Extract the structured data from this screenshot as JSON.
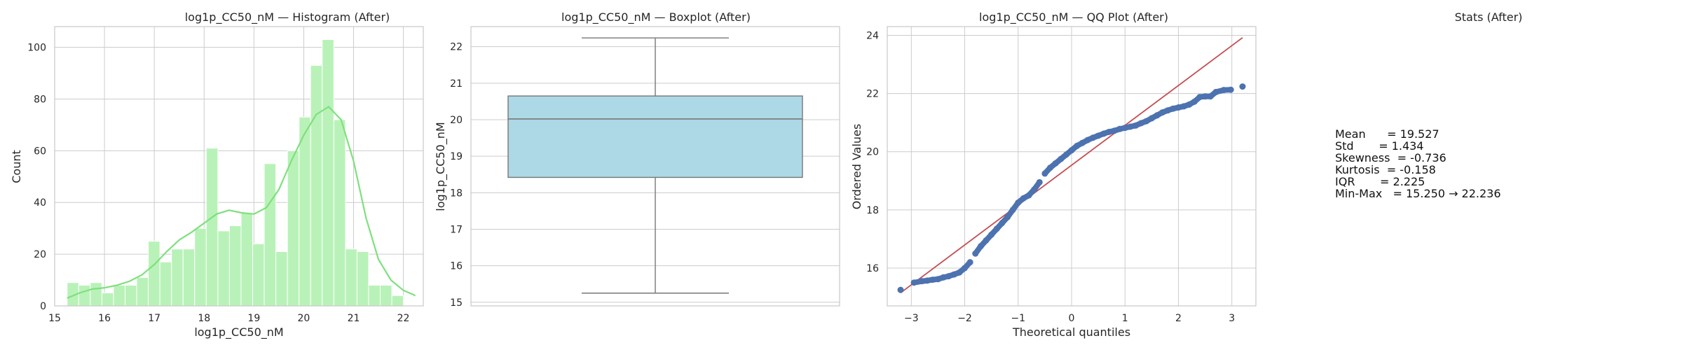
{
  "chart_data": [
    {
      "type": "histogram",
      "title": "log1p_CC50_nM — Histogram (After)",
      "xlabel": "log1p_CC50_nM",
      "ylabel": "Count",
      "xlim": [
        15.0,
        22.4
      ],
      "ylim": [
        0,
        108
      ],
      "xticks": [
        15,
        16,
        17,
        18,
        19,
        20,
        21,
        22
      ],
      "yticks": [
        0,
        20,
        40,
        60,
        80,
        100
      ],
      "bins": [
        {
          "x0": 15.25,
          "x1": 15.482,
          "count": 9
        },
        {
          "x0": 15.482,
          "x1": 15.715,
          "count": 8
        },
        {
          "x0": 15.715,
          "x1": 15.948,
          "count": 9
        },
        {
          "x0": 15.948,
          "x1": 16.181,
          "count": 5
        },
        {
          "x0": 16.181,
          "x1": 16.414,
          "count": 8
        },
        {
          "x0": 16.414,
          "x1": 16.646,
          "count": 8
        },
        {
          "x0": 16.646,
          "x1": 16.879,
          "count": 11
        },
        {
          "x0": 16.879,
          "x1": 17.112,
          "count": 25
        },
        {
          "x0": 17.112,
          "x1": 17.345,
          "count": 17
        },
        {
          "x0": 17.345,
          "x1": 17.578,
          "count": 22
        },
        {
          "x0": 17.578,
          "x1": 17.81,
          "count": 22
        },
        {
          "x0": 17.81,
          "x1": 18.043,
          "count": 30
        },
        {
          "x0": 18.043,
          "x1": 18.276,
          "count": 61
        },
        {
          "x0": 18.276,
          "x1": 18.509,
          "count": 29
        },
        {
          "x0": 18.509,
          "x1": 18.742,
          "count": 31
        },
        {
          "x0": 18.742,
          "x1": 18.974,
          "count": 36
        },
        {
          "x0": 18.974,
          "x1": 19.207,
          "count": 24
        },
        {
          "x0": 19.207,
          "x1": 19.44,
          "count": 55
        },
        {
          "x0": 19.44,
          "x1": 19.673,
          "count": 21
        },
        {
          "x0": 19.673,
          "x1": 19.906,
          "count": 60
        },
        {
          "x0": 19.906,
          "x1": 20.138,
          "count": 73
        },
        {
          "x0": 20.138,
          "x1": 20.371,
          "count": 93
        },
        {
          "x0": 20.371,
          "x1": 20.604,
          "count": 103
        },
        {
          "x0": 20.604,
          "x1": 20.837,
          "count": 72
        },
        {
          "x0": 20.837,
          "x1": 21.07,
          "count": 22
        },
        {
          "x0": 21.07,
          "x1": 21.302,
          "count": 21
        },
        {
          "x0": 21.302,
          "x1": 21.535,
          "count": 8
        },
        {
          "x0": 21.535,
          "x1": 21.768,
          "count": 8
        },
        {
          "x0": 21.768,
          "x1": 22.001,
          "count": 4
        }
      ],
      "kde": [
        [
          15.25,
          3
        ],
        [
          15.5,
          5
        ],
        [
          15.75,
          6.5
        ],
        [
          16.0,
          7
        ],
        [
          16.25,
          8
        ],
        [
          16.5,
          9.5
        ],
        [
          16.75,
          12
        ],
        [
          17.0,
          16
        ],
        [
          17.25,
          21
        ],
        [
          17.5,
          25.5
        ],
        [
          17.75,
          28.5
        ],
        [
          18.0,
          32
        ],
        [
          18.25,
          35.5
        ],
        [
          18.5,
          37
        ],
        [
          18.75,
          36
        ],
        [
          19.0,
          35.5
        ],
        [
          19.25,
          38
        ],
        [
          19.5,
          45
        ],
        [
          19.75,
          56
        ],
        [
          20.0,
          66
        ],
        [
          20.25,
          74
        ],
        [
          20.5,
          77
        ],
        [
          20.75,
          72
        ],
        [
          21.0,
          56
        ],
        [
          21.25,
          34
        ],
        [
          21.5,
          18
        ],
        [
          21.75,
          10
        ],
        [
          22.0,
          6
        ],
        [
          22.24,
          4
        ]
      ],
      "colors": {
        "bar": "#b9f2b8",
        "bar_edge": "#ffffff",
        "kde": "#7fe07e"
      }
    },
    {
      "type": "boxplot",
      "title": "log1p_CC50_nM — Boxplot (After)",
      "ylabel": "log1p_CC50_nM",
      "ylim": [
        14.9,
        22.55
      ],
      "yticks": [
        15,
        16,
        17,
        18,
        19,
        20,
        21,
        22
      ],
      "whisker_low": 15.25,
      "q1": 18.42,
      "median": 20.02,
      "q3": 20.65,
      "whisker_high": 22.24,
      "colors": {
        "box": "#add8e6",
        "line": "#777777"
      }
    },
    {
      "type": "scatter",
      "title": "log1p_CC50_nM — QQ Plot (After)",
      "xlabel": "Theoretical quantiles",
      "ylabel": "Ordered Values",
      "xlim": [
        -3.45,
        3.45
      ],
      "ylim": [
        14.7,
        24.3
      ],
      "xticks": [
        -3,
        -2,
        -1,
        0,
        1,
        2,
        3
      ],
      "yticks": [
        16,
        18,
        20,
        22,
        24
      ],
      "points": [
        [
          -3.2,
          15.25
        ],
        [
          -2.95,
          15.5
        ],
        [
          -2.8,
          15.55
        ],
        [
          -2.7,
          15.57
        ],
        [
          -2.6,
          15.6
        ],
        [
          -2.5,
          15.62
        ],
        [
          -2.4,
          15.68
        ],
        [
          -2.3,
          15.72
        ],
        [
          -2.2,
          15.78
        ],
        [
          -2.1,
          15.85
        ],
        [
          -2.0,
          16.0
        ],
        [
          -1.9,
          16.2
        ],
        [
          -1.8,
          16.5
        ],
        [
          -1.7,
          16.75
        ],
        [
          -1.6,
          16.95
        ],
        [
          -1.5,
          17.15
        ],
        [
          -1.4,
          17.35
        ],
        [
          -1.3,
          17.55
        ],
        [
          -1.2,
          17.75
        ],
        [
          -1.1,
          18.0
        ],
        [
          -1.0,
          18.25
        ],
        [
          -0.9,
          18.4
        ],
        [
          -0.8,
          18.5
        ],
        [
          -0.7,
          18.7
        ],
        [
          -0.6,
          18.95
        ],
        [
          -0.5,
          19.25
        ],
        [
          -0.4,
          19.45
        ],
        [
          -0.3,
          19.6
        ],
        [
          -0.2,
          19.75
        ],
        [
          -0.1,
          19.9
        ],
        [
          0.0,
          20.05
        ],
        [
          0.1,
          20.2
        ],
        [
          0.2,
          20.3
        ],
        [
          0.3,
          20.4
        ],
        [
          0.4,
          20.48
        ],
        [
          0.5,
          20.55
        ],
        [
          0.6,
          20.62
        ],
        [
          0.7,
          20.68
        ],
        [
          0.8,
          20.72
        ],
        [
          0.9,
          20.78
        ],
        [
          1.0,
          20.82
        ],
        [
          1.1,
          20.86
        ],
        [
          1.2,
          20.9
        ],
        [
          1.3,
          20.98
        ],
        [
          1.4,
          21.05
        ],
        [
          1.5,
          21.15
        ],
        [
          1.6,
          21.25
        ],
        [
          1.7,
          21.35
        ],
        [
          1.8,
          21.42
        ],
        [
          1.9,
          21.48
        ],
        [
          2.0,
          21.52
        ],
        [
          2.1,
          21.56
        ],
        [
          2.2,
          21.62
        ],
        [
          2.3,
          21.72
        ],
        [
          2.4,
          21.88
        ],
        [
          2.5,
          21.9
        ],
        [
          2.6,
          21.9
        ],
        [
          2.7,
          22.05
        ],
        [
          2.85,
          22.12
        ],
        [
          2.98,
          22.13
        ],
        [
          3.2,
          22.24
        ]
      ],
      "reference_line": [
        [
          -3.2,
          15.15
        ],
        [
          3.2,
          23.92
        ]
      ],
      "colors": {
        "point": "#4c72b0",
        "line": "#c44e52"
      }
    }
  ],
  "stats": {
    "title": "Stats (After)",
    "lines": [
      "Mean      = 19.527",
      "Std       = 1.434",
      "Skewness  = -0.736",
      "Kurtosis  = -0.158",
      "IQR       = 2.225",
      "Min-Max   = 15.250 → 22.236"
    ]
  }
}
